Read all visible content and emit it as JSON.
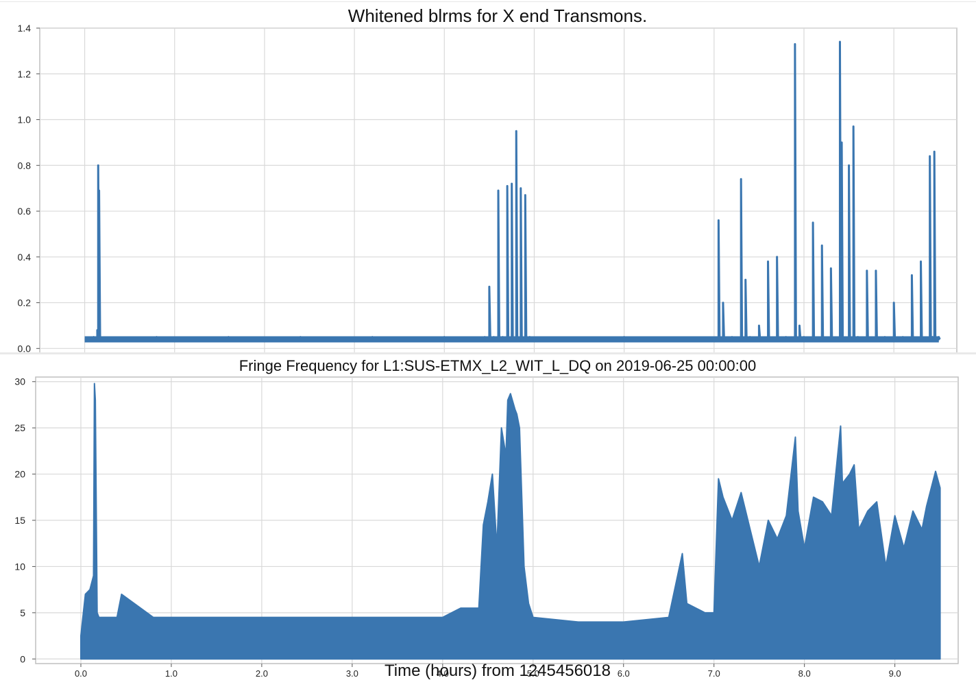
{
  "chart_data": [
    {
      "type": "line",
      "title": "Whitened blrms for X end Transmons.",
      "xlabel": "",
      "ylabel": "",
      "xlim": [
        -0.5,
        9.7
      ],
      "ylim": [
        -0.02,
        1.4
      ],
      "x_ticks": [
        0.0,
        1.0,
        2.0,
        3.0,
        4.0,
        5.0,
        6.0,
        7.0,
        8.0,
        9.0
      ],
      "x_tick_labels_visible": false,
      "y_ticks": [
        0.0,
        0.2,
        0.4,
        0.6,
        0.8,
        1.0,
        1.2,
        1.4
      ],
      "y_tick_labels": [
        "0.0",
        "0.2",
        "0.4",
        "0.6",
        "0.8",
        "1.0",
        "1.2",
        "1.4"
      ],
      "grid": true,
      "color": "#3a76b0",
      "series": [
        {
          "x": [
            0.0,
            0.05,
            0.1,
            0.14,
            0.15,
            0.16,
            0.17,
            0.18,
            0.2,
            0.4,
            0.8,
            1.2,
            1.6,
            2.0,
            2.4,
            2.8,
            3.2,
            3.6,
            4.0,
            4.3,
            4.45,
            4.5,
            4.55,
            4.6,
            4.65,
            4.7,
            4.75,
            4.8,
            4.85,
            4.9,
            4.95,
            5.0,
            5.5,
            6.0,
            6.5,
            6.8,
            7.0,
            7.05,
            7.1,
            7.2,
            7.3,
            7.35,
            7.4,
            7.5,
            7.6,
            7.7,
            7.8,
            7.9,
            7.95,
            8.0,
            8.1,
            8.2,
            8.3,
            8.4,
            8.42,
            8.5,
            8.55,
            8.6,
            8.7,
            8.8,
            8.9,
            9.0,
            9.1,
            9.2,
            9.3,
            9.4,
            9.43,
            9.45,
            9.5
          ],
          "y": [
            0.04,
            0.04,
            0.05,
            0.08,
            0.8,
            0.69,
            0.05,
            0.04,
            0.04,
            0.04,
            0.05,
            0.04,
            0.05,
            0.04,
            0.05,
            0.04,
            0.05,
            0.04,
            0.05,
            0.04,
            0.05,
            0.27,
            0.05,
            0.69,
            0.05,
            0.71,
            0.72,
            0.95,
            0.7,
            0.67,
            0.05,
            0.04,
            0.04,
            0.05,
            0.04,
            0.04,
            0.04,
            0.56,
            0.2,
            0.05,
            0.74,
            0.3,
            0.05,
            0.1,
            0.38,
            0.4,
            0.05,
            1.33,
            0.1,
            0.05,
            0.55,
            0.45,
            0.35,
            1.34,
            0.9,
            0.8,
            0.97,
            0.05,
            0.34,
            0.34,
            0.05,
            0.2,
            0.05,
            0.32,
            0.38,
            0.84,
            0.05,
            0.86,
            0.05
          ]
        }
      ]
    },
    {
      "type": "area",
      "title": "Fringe Frequency for L1:SUS-ETMX_L2_WIT_L_DQ on 2019-06-25 00:00:00",
      "xlabel": "Time (hours) from 1245456018",
      "ylabel": "",
      "xlim": [
        -0.5,
        9.7
      ],
      "ylim": [
        -0.5,
        30.5
      ],
      "x_ticks": [
        0.0,
        1.0,
        2.0,
        3.0,
        4.0,
        5.0,
        6.0,
        7.0,
        8.0,
        9.0
      ],
      "x_tick_labels": [
        "0.0",
        "1.0",
        "2.0",
        "3.0",
        "4.0",
        "5.0",
        "6.0",
        "7.0",
        "8.0",
        "9.0"
      ],
      "y_ticks": [
        0,
        5,
        10,
        15,
        20,
        25,
        30
      ],
      "y_tick_labels": [
        "0",
        "5",
        "10",
        "15",
        "20",
        "25",
        "30"
      ],
      "grid": true,
      "color": "#3a76b0",
      "series": [
        {
          "x": [
            0.0,
            0.05,
            0.1,
            0.14,
            0.15,
            0.16,
            0.18,
            0.2,
            0.4,
            0.45,
            0.8,
            1.2,
            1.6,
            2.0,
            2.4,
            2.8,
            3.2,
            3.6,
            4.0,
            4.2,
            4.4,
            4.45,
            4.5,
            4.55,
            4.6,
            4.65,
            4.7,
            4.72,
            4.75,
            4.8,
            4.82,
            4.85,
            4.9,
            4.95,
            5.0,
            5.5,
            6.0,
            6.5,
            6.65,
            6.7,
            6.8,
            6.9,
            7.0,
            7.05,
            7.1,
            7.2,
            7.3,
            7.4,
            7.5,
            7.6,
            7.7,
            7.8,
            7.9,
            7.93,
            8.0,
            8.1,
            8.2,
            8.3,
            8.4,
            8.42,
            8.5,
            8.55,
            8.6,
            8.7,
            8.8,
            8.9,
            9.0,
            9.1,
            9.2,
            9.3,
            9.35,
            9.45,
            9.5
          ],
          "y": [
            2.5,
            7.0,
            7.5,
            9.0,
            29.8,
            28.0,
            5.0,
            4.5,
            4.5,
            7.0,
            4.5,
            4.5,
            4.5,
            4.5,
            4.5,
            4.5,
            4.5,
            4.5,
            4.5,
            5.5,
            5.5,
            14.5,
            17.0,
            20.0,
            12.0,
            25.0,
            22.0,
            28.0,
            28.7,
            27.0,
            26.5,
            25.0,
            10.0,
            6.0,
            4.5,
            4.0,
            4.0,
            4.5,
            11.4,
            6.0,
            5.5,
            5.0,
            5.0,
            19.5,
            17.5,
            15.0,
            18.0,
            14.0,
            10.0,
            15.0,
            13.0,
            15.5,
            24.0,
            16.0,
            12.0,
            17.5,
            17.0,
            15.5,
            25.2,
            19.0,
            20.0,
            21.0,
            14.0,
            16.0,
            17.0,
            10.0,
            15.5,
            12.0,
            16.0,
            14.0,
            16.5,
            20.3,
            18.5
          ]
        }
      ]
    }
  ]
}
